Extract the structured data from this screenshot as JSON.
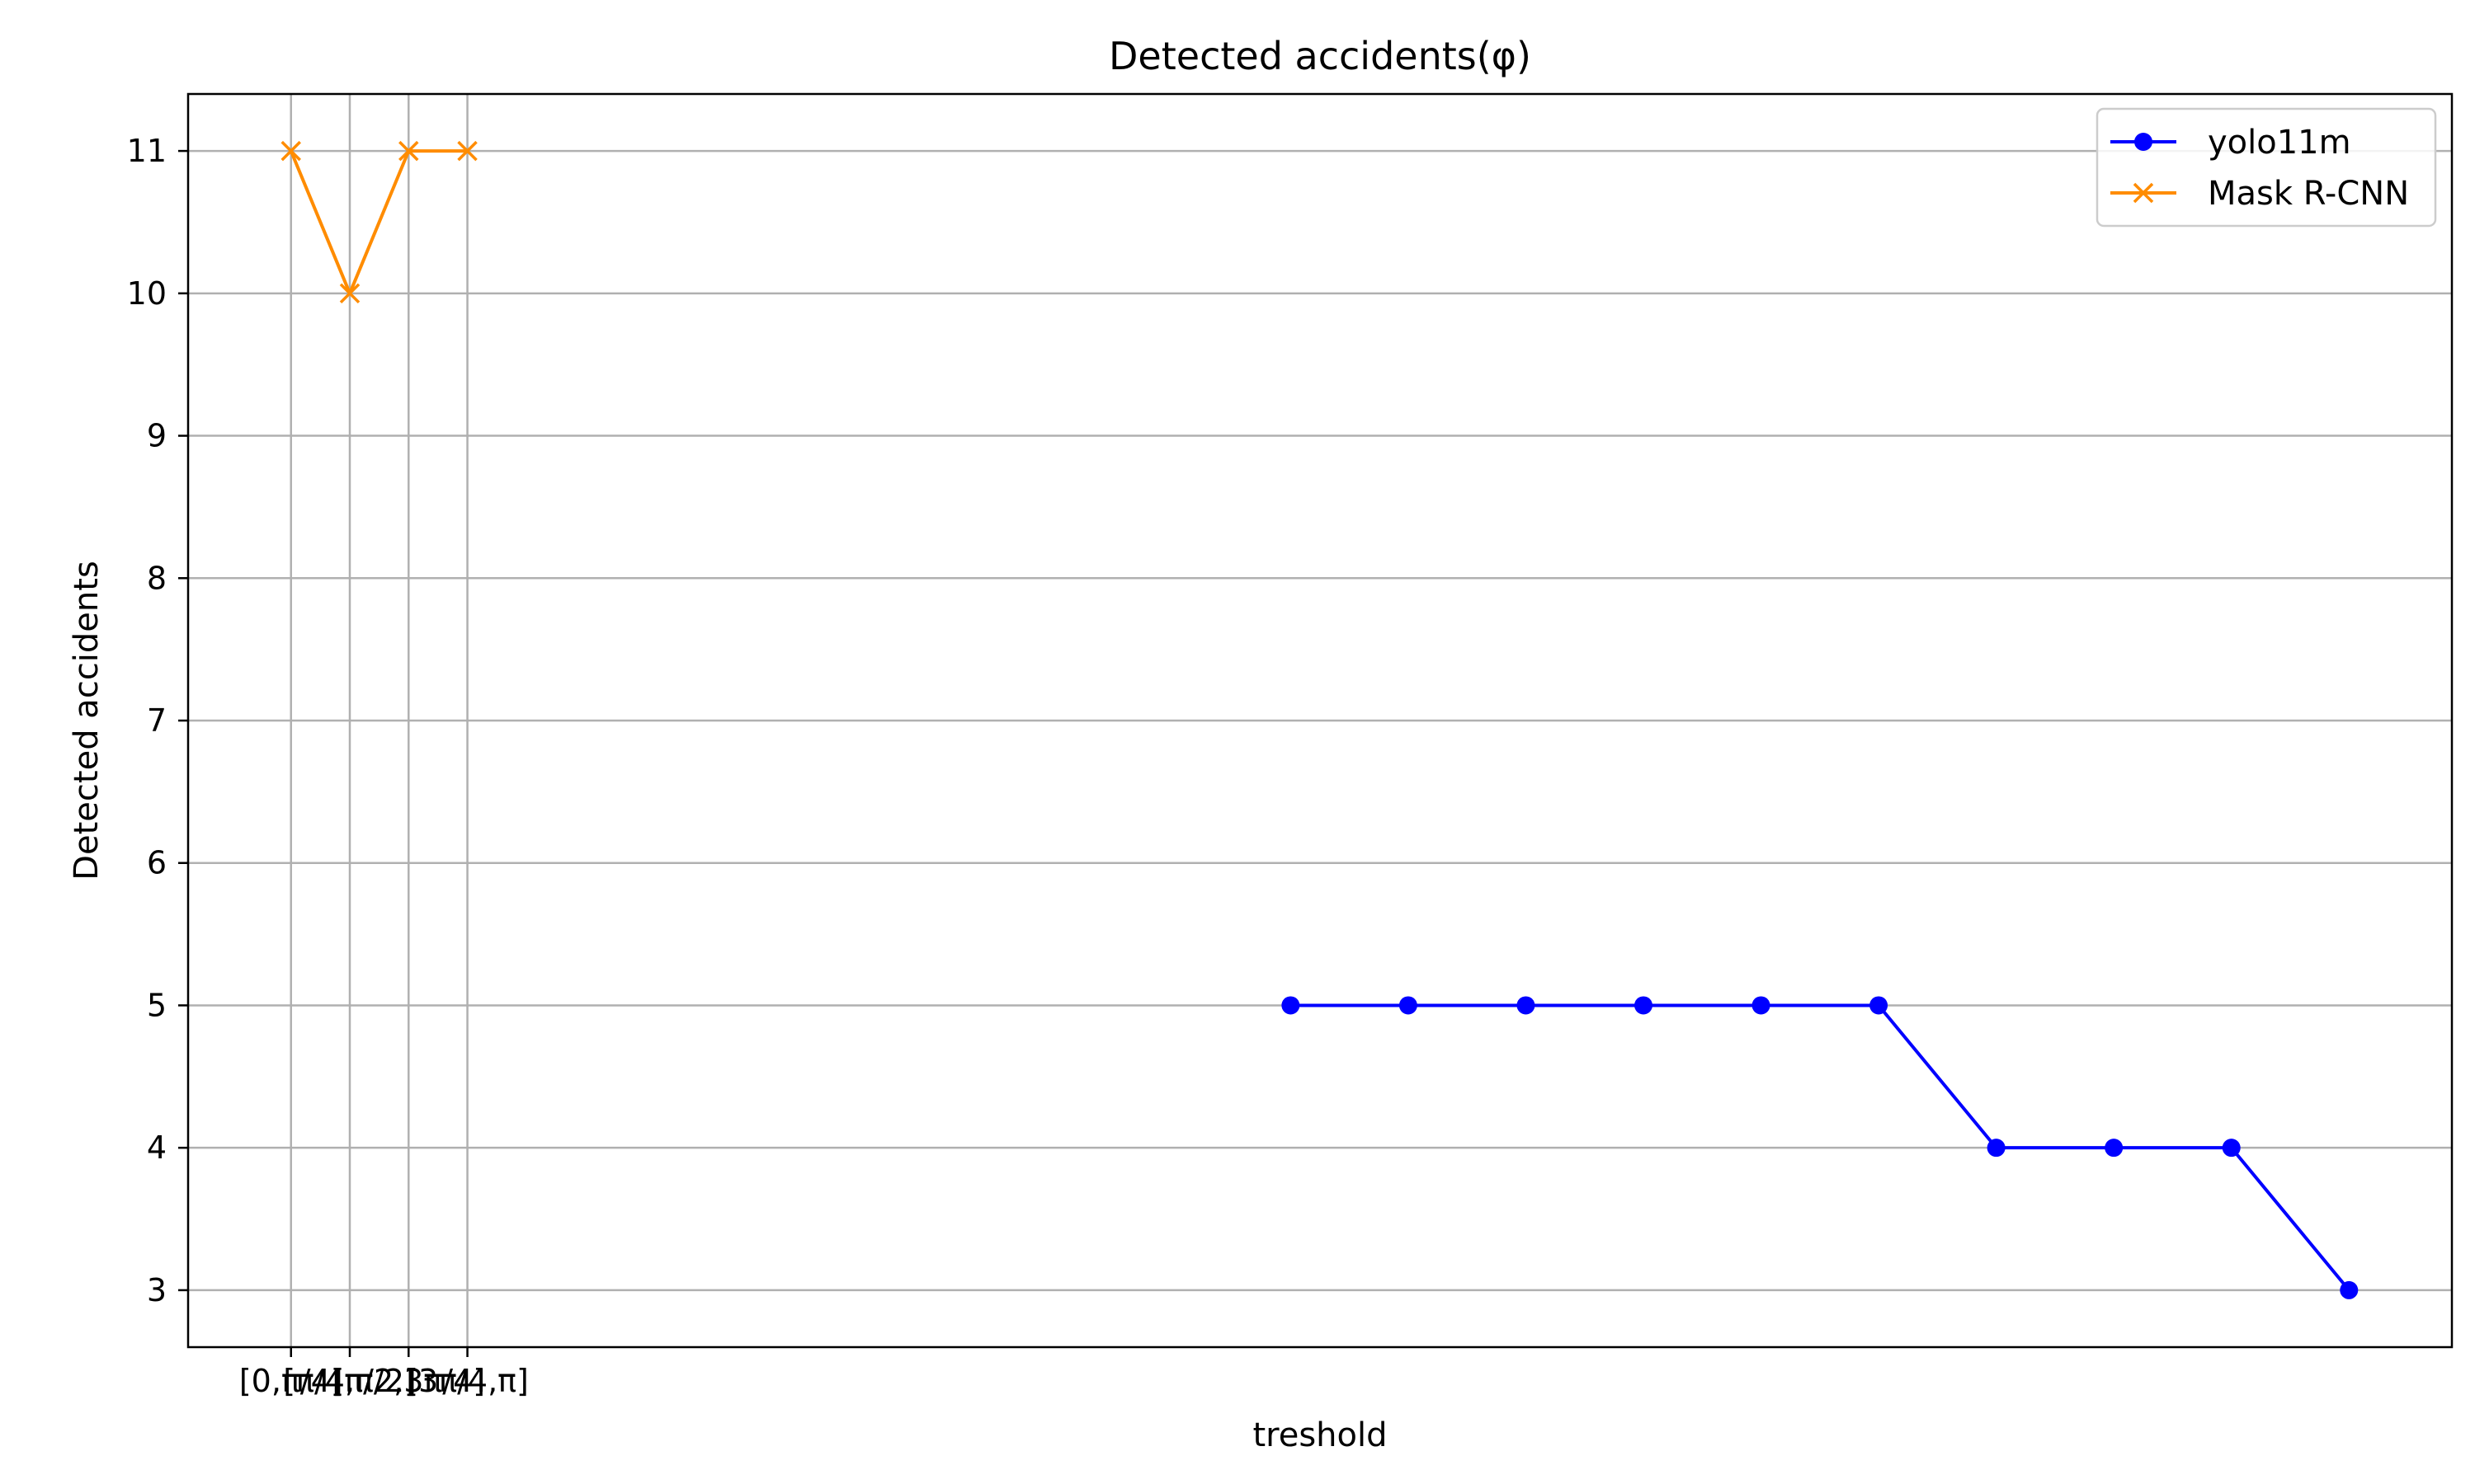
{
  "chart_data": {
    "type": "line",
    "title": "Detected accidents(φ)",
    "xlabel": "treshold",
    "ylabel": "Detected accidents",
    "y_ticks": [
      3,
      4,
      5,
      6,
      7,
      8,
      9,
      10,
      11
    ],
    "ylim": [
      2.6,
      11.4
    ],
    "x_ticks": [
      "[0,π/4]",
      "[π/4,π/2]",
      "[π/2,3π/4]",
      "[3π/4,π]"
    ],
    "grid": true,
    "legend_placement": "top-right",
    "series": [
      {
        "name": "yolo11m",
        "color": "#0000ff",
        "marker": "circle",
        "x": [
          17,
          19,
          21,
          23,
          25,
          27,
          29,
          31,
          33,
          35
        ],
        "values": [
          5,
          5,
          5,
          5,
          5,
          5,
          4,
          4,
          4,
          3
        ]
      },
      {
        "name": "Mask R-CNN",
        "color": "#ff8c00",
        "marker": "x",
        "x": [
          0,
          1,
          2,
          3
        ],
        "values": [
          11,
          10,
          11,
          11
        ]
      }
    ],
    "xlim": [
      -1.75,
      36.75
    ]
  }
}
